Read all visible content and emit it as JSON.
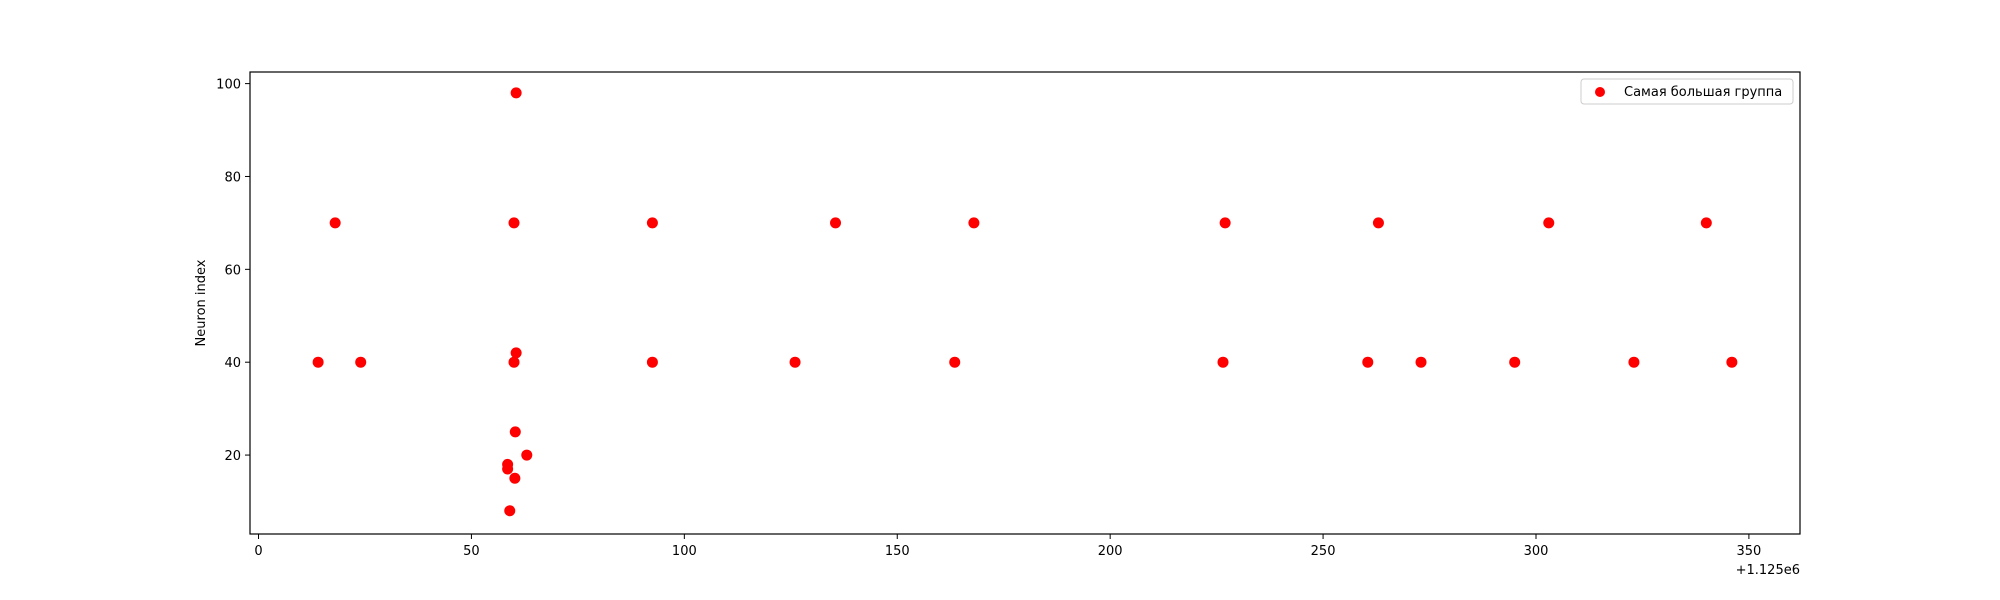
{
  "chart_data": {
    "type": "scatter",
    "ylabel": "Neuron index",
    "x_offset_label": "+1.125e6",
    "xticks": [
      "0",
      "50",
      "100",
      "150",
      "200",
      "250",
      "300",
      "350"
    ],
    "yticks": [
      "20",
      "40",
      "60",
      "80",
      "100"
    ],
    "xlim": [
      -2,
      362
    ],
    "ylim": [
      3,
      102.5
    ],
    "legend": "top-right",
    "grid": false,
    "series": [
      {
        "name": "Самая большая группа",
        "color": "#ff0000",
        "points": [
          {
            "x": 14,
            "y": 40
          },
          {
            "x": 18,
            "y": 70
          },
          {
            "x": 24,
            "y": 40
          },
          {
            "x": 58.5,
            "y": 18
          },
          {
            "x": 58.5,
            "y": 17
          },
          {
            "x": 59,
            "y": 8
          },
          {
            "x": 60,
            "y": 70
          },
          {
            "x": 60,
            "y": 40
          },
          {
            "x": 60.2,
            "y": 15
          },
          {
            "x": 60.3,
            "y": 25
          },
          {
            "x": 60.5,
            "y": 42
          },
          {
            "x": 60.5,
            "y": 98
          },
          {
            "x": 63,
            "y": 20
          },
          {
            "x": 92.5,
            "y": 70
          },
          {
            "x": 92.5,
            "y": 40
          },
          {
            "x": 126,
            "y": 40
          },
          {
            "x": 135.5,
            "y": 70
          },
          {
            "x": 163.5,
            "y": 40
          },
          {
            "x": 168,
            "y": 70
          },
          {
            "x": 226.5,
            "y": 40
          },
          {
            "x": 227,
            "y": 70
          },
          {
            "x": 260.5,
            "y": 40
          },
          {
            "x": 263,
            "y": 70
          },
          {
            "x": 273,
            "y": 40
          },
          {
            "x": 295,
            "y": 40
          },
          {
            "x": 303,
            "y": 70
          },
          {
            "x": 323,
            "y": 40
          },
          {
            "x": 340,
            "y": 70
          },
          {
            "x": 346,
            "y": 40
          }
        ]
      }
    ]
  }
}
